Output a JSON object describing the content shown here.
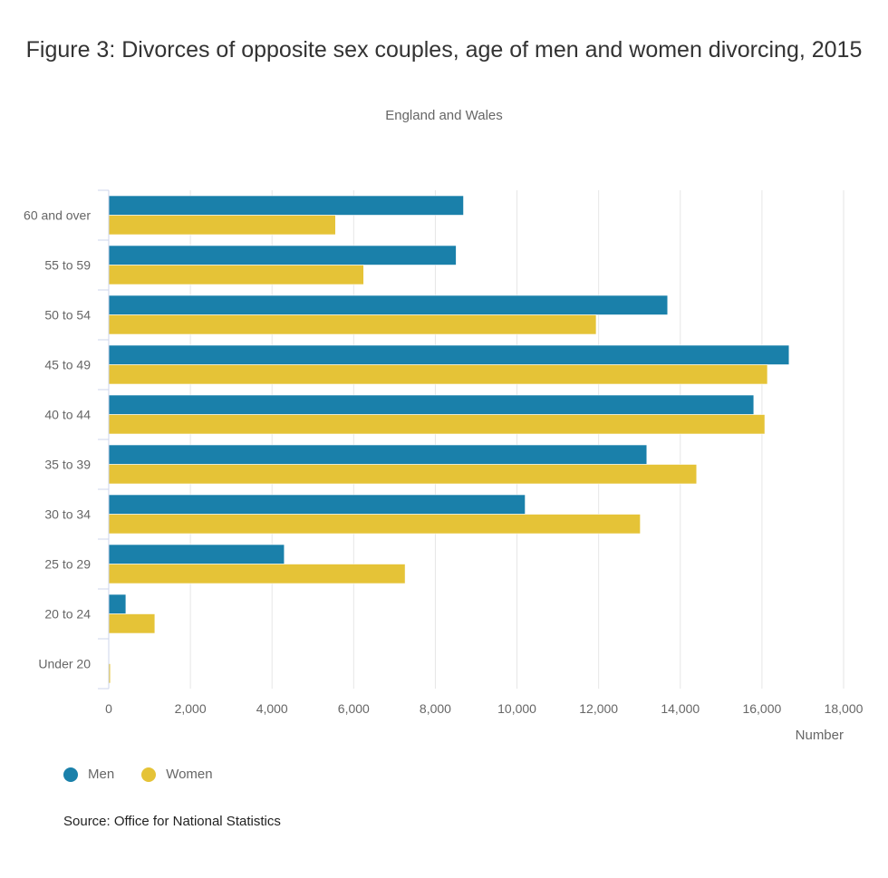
{
  "chart_data": {
    "type": "bar",
    "orientation": "horizontal",
    "title": "Figure 3: Divorces of opposite sex couples, age of men and women divorcing, 2015",
    "subtitle": "England and Wales",
    "xlabel": "Number",
    "ylabel": "",
    "xlim": [
      0,
      18000
    ],
    "xticks": [
      0,
      2000,
      4000,
      6000,
      8000,
      10000,
      12000,
      14000,
      16000,
      18000
    ],
    "xtick_labels": [
      "0",
      "2,000",
      "4,000",
      "6,000",
      "8,000",
      "10,000",
      "12,000",
      "14,000",
      "16,000",
      "18,000"
    ],
    "grid": true,
    "legend_position": "bottom-left",
    "categories": [
      "60 and over",
      "55 to 59",
      "50 to 54",
      "45 to 49",
      "40 to 44",
      "35 to 39",
      "30 to 34",
      "25 to 29",
      "20 to 24",
      "Under 20"
    ],
    "series": [
      {
        "name": "Men",
        "color": "#1a80aa",
        "values": [
          8690,
          8510,
          13690,
          16665,
          15800,
          13180,
          10200,
          4300,
          420,
          10
        ]
      },
      {
        "name": "Women",
        "color": "#e5c337",
        "values": [
          5555,
          6245,
          11940,
          16135,
          16070,
          14400,
          13020,
          7260,
          1130,
          40
        ]
      }
    ],
    "source": "Source: Office for National Statistics"
  }
}
